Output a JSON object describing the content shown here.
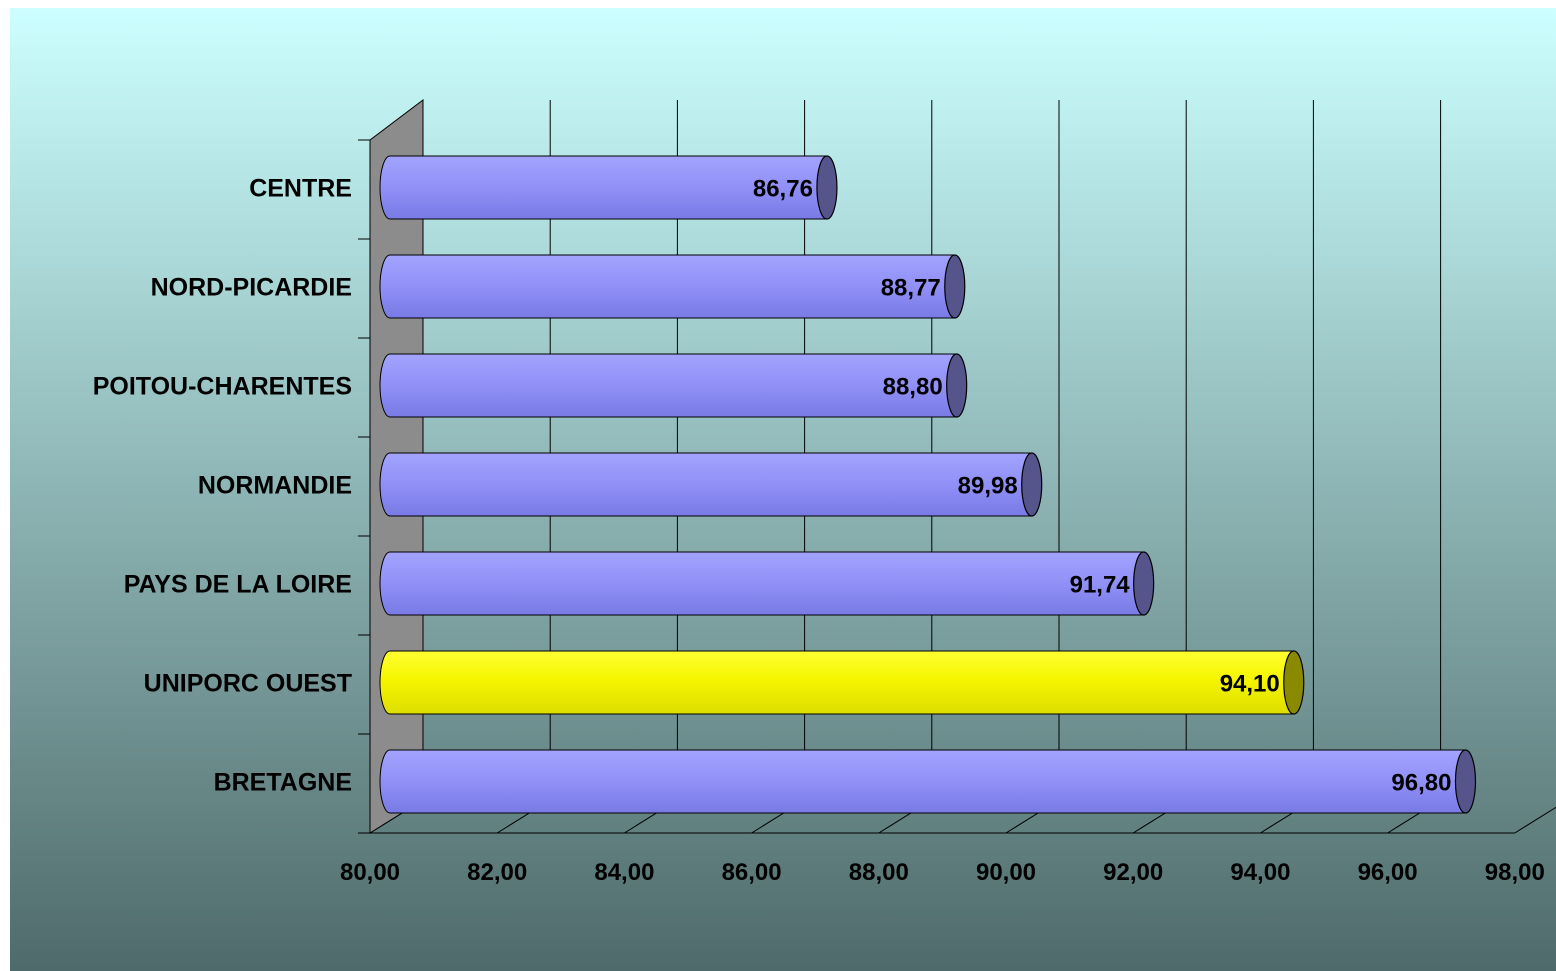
{
  "chart_data": {
    "type": "bar",
    "orientation": "horizontal",
    "style": "3d-cylinder",
    "categories": [
      "BRETAGNE",
      "UNIPORC OUEST",
      "PAYS DE LA LOIRE",
      "NORMANDIE",
      "POITOU-CHARENTES",
      "NORD-PICARDIE",
      "CENTRE"
    ],
    "values": [
      96.8,
      94.1,
      91.74,
      89.98,
      88.8,
      88.77,
      86.76
    ],
    "value_labels": [
      "96,80",
      "94,10",
      "91,74",
      "89,98",
      "88,80",
      "88,77",
      "86,76"
    ],
    "bar_colors": [
      "#8f8ff5",
      "#f5f500",
      "#8f8ff5",
      "#8f8ff5",
      "#8f8ff5",
      "#8f8ff5",
      "#8f8ff5"
    ],
    "xlim": [
      80,
      98
    ],
    "x_ticks": [
      80,
      82,
      84,
      86,
      88,
      90,
      92,
      94,
      96,
      98
    ],
    "x_tick_labels": [
      "80,00",
      "82,00",
      "84,00",
      "86,00",
      "88,00",
      "90,00",
      "92,00",
      "94,00",
      "96,00",
      "98,00"
    ],
    "grid": true,
    "legend": "none",
    "title": "",
    "xlabel": "",
    "ylabel": ""
  },
  "colors": {
    "background_top": "#ccffff",
    "background_bottom": "#4f6a6a",
    "bar_default": "#8f8ff5",
    "bar_highlight": "#f5f500",
    "wall": "#8c8c8c",
    "gridline": "#000000"
  }
}
